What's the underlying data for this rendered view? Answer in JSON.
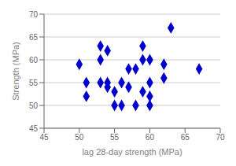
{
  "chart_data": {
    "type": "scatter",
    "x": [
      50,
      51,
      51,
      53,
      53,
      53,
      54,
      54,
      54,
      55,
      55,
      56,
      56,
      57,
      57,
      58,
      58,
      59,
      59,
      59,
      60,
      60,
      60,
      60,
      62,
      62,
      63,
      67
    ],
    "y": [
      59,
      52,
      55,
      55,
      63,
      60,
      54,
      62,
      55,
      53,
      50,
      50,
      55,
      58,
      54,
      58,
      50,
      53,
      63,
      60,
      60,
      55,
      52,
      50,
      59,
      56,
      67,
      58
    ],
    "xlabel": "lag 28-day strength (MPa)",
    "ylabel": "Strength (MPa)",
    "xlim": [
      45,
      70
    ],
    "ylim": [
      45,
      70
    ],
    "xticks": [
      45,
      50,
      55,
      60,
      65,
      70
    ],
    "yticks": [
      45,
      50,
      55,
      60,
      65,
      70
    ],
    "color": "#0000CC",
    "marker": "diamond",
    "grid": "y"
  }
}
